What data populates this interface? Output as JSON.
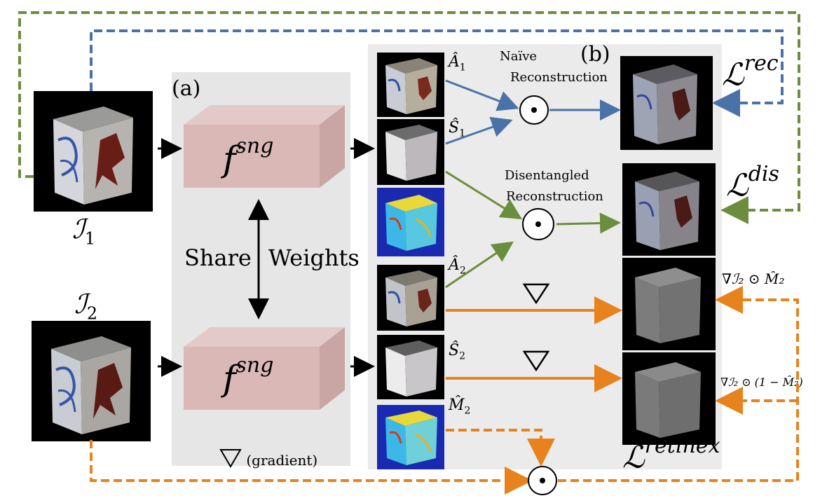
{
  "labels": {
    "panel_a": "(a)",
    "panel_b": "(b)",
    "share": "Share",
    "weights": "Weights",
    "gradient": "(gradient)",
    "naive_line1": "Naïve",
    "naive_line2": "Reconstruction",
    "dis_line1": "Disentangled",
    "dis_line2": "Reconstruction"
  },
  "math": {
    "f_base": "f",
    "f_sup": "sng",
    "I_base": "ℐ",
    "sub1": "1",
    "sub2": "2",
    "A_hat": "Â",
    "S_hat": "Ŝ",
    "M_hat": "M̂",
    "L_base": "ℒ",
    "L_rec_sup": "rec",
    "L_dis_sup": "dis",
    "L_retinex_sup": "retinex",
    "odot": "⊙",
    "nabla": "∇",
    "formula_top": "∇ℐ₂ ⊙ M̂₂",
    "formula_bottom": "∇ℐ₂ ⊙ (1 − M̂₂)"
  },
  "colors": {
    "blue": "#4a72a8",
    "green": "#6b8e3e",
    "orange": "#e8821c",
    "dash_green": "#6b8e3e",
    "dash_blue": "#4a72a8",
    "f_box": "#d9b8b6"
  }
}
